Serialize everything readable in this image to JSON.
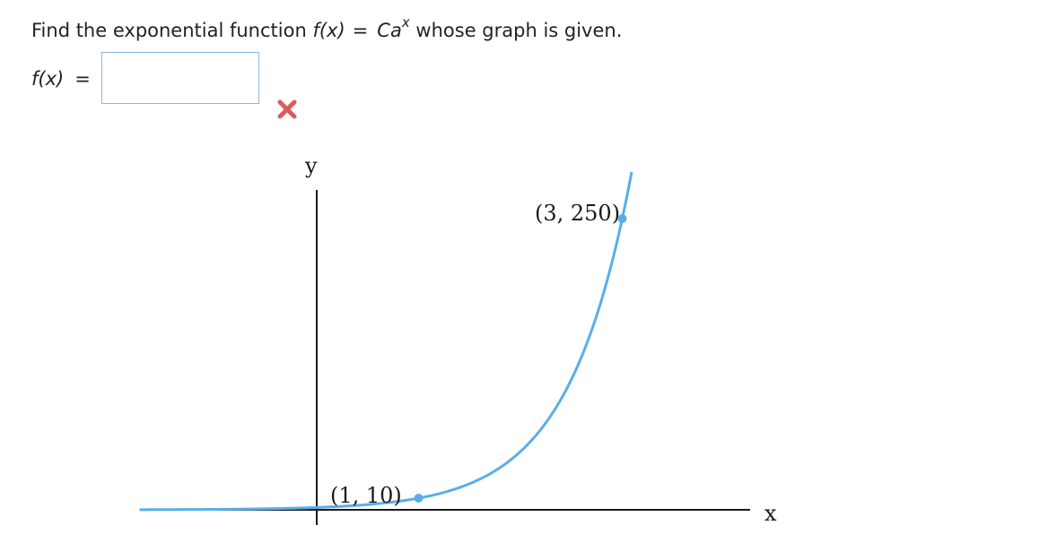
{
  "question": {
    "prefix": "Find the exponential function",
    "fx": "f(x)",
    "equals": "=",
    "base": "Ca",
    "exponent": "x",
    "suffix": "whose graph is given."
  },
  "answer": {
    "label": "f(x)",
    "equals": "=",
    "value": "",
    "status_icon": "x-mark-icon",
    "status_color": "#e05a5a"
  },
  "chart_data": {
    "type": "line",
    "xlabel": "x",
    "ylabel": "y",
    "curve_color": "#5aaee8",
    "axis_color": "#1a1a1a",
    "function": "f(x) = C·a^x",
    "points": [
      {
        "x": 1,
        "y": 10,
        "label": "(1, 10)"
      },
      {
        "x": 3,
        "y": 250,
        "label": "(3, 250)"
      }
    ],
    "xlim": [
      -1.74,
      4.89
    ],
    "ylim": [
      0,
      290
    ]
  }
}
